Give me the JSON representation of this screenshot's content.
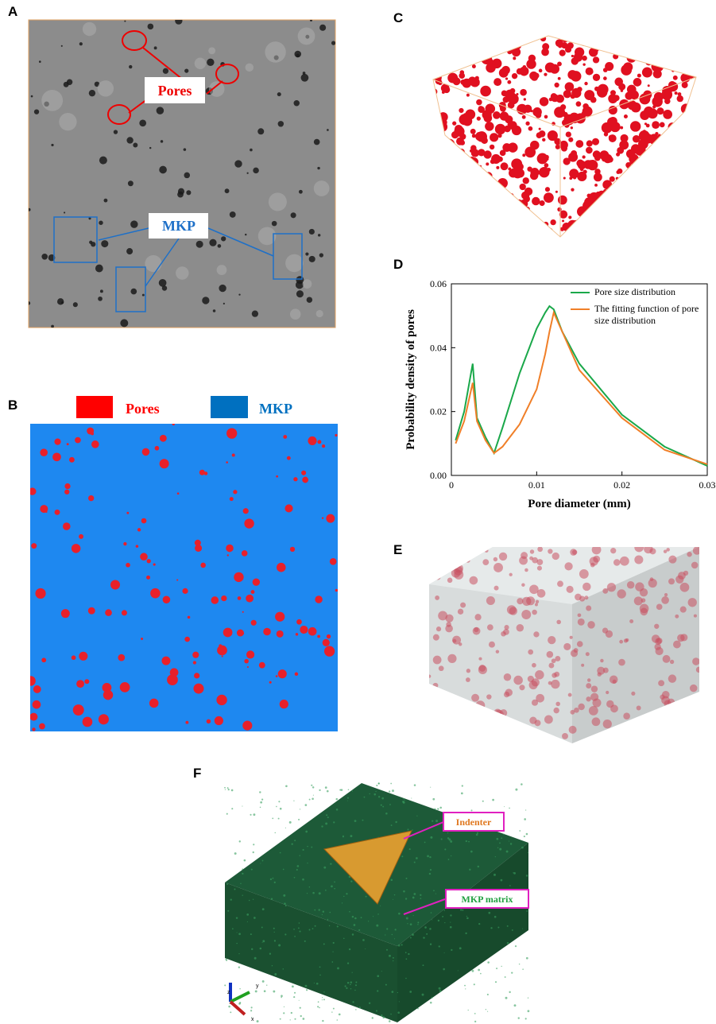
{
  "panel_labels": [
    "A",
    "B",
    "C",
    "D",
    "E",
    "F"
  ],
  "panel_a": {
    "pores_label": "Pores",
    "mkp_label": "MKP"
  },
  "panel_b": {
    "legend": [
      {
        "name": "Pores",
        "color": "#ff0000"
      },
      {
        "name": "MKP",
        "color": "#0070c0"
      }
    ]
  },
  "chart_data": {
    "type": "line",
    "xlabel": "Pore diameter (mm)",
    "ylabel": "Probability density  of pores",
    "x": [
      0.0005,
      0.0015,
      0.0025,
      0.003,
      0.004,
      0.005,
      0.006,
      0.008,
      0.01,
      0.011,
      0.0115,
      0.012,
      0.013,
      0.015,
      0.02,
      0.025,
      0.03
    ],
    "series": [
      {
        "name": "Pore size distribution",
        "color": "#1aa84a",
        "values": [
          0.011,
          0.02,
          0.035,
          0.018,
          0.012,
          0.007,
          0.015,
          0.032,
          0.046,
          0.051,
          0.053,
          0.052,
          0.045,
          0.035,
          0.019,
          0.009,
          0.003
        ]
      },
      {
        "name": "The fitting function of pore size distribution",
        "color": "#f07f28",
        "values": [
          0.01,
          0.017,
          0.029,
          0.017,
          0.011,
          0.007,
          0.009,
          0.016,
          0.027,
          0.038,
          0.045,
          0.051,
          0.045,
          0.033,
          0.018,
          0.008,
          0.0035
        ]
      }
    ],
    "xlim": [
      0,
      0.03
    ],
    "xticks": [
      0,
      0.01,
      0.02,
      0.03
    ],
    "ylim": [
      0,
      0.06
    ],
    "yticks": [
      {
        "value": 0,
        "label": "0.00"
      },
      {
        "value": 0.02,
        "label": "0.02"
      },
      {
        "value": 0.04,
        "label": "0.04"
      },
      {
        "value": 0.06,
        "label": "0.06"
      }
    ],
    "legend": "upper right"
  },
  "panel_f": {
    "indenter_label": "Indenter",
    "matrix_label": "MKP matrix",
    "axes": [
      "z",
      "y",
      "x"
    ]
  }
}
